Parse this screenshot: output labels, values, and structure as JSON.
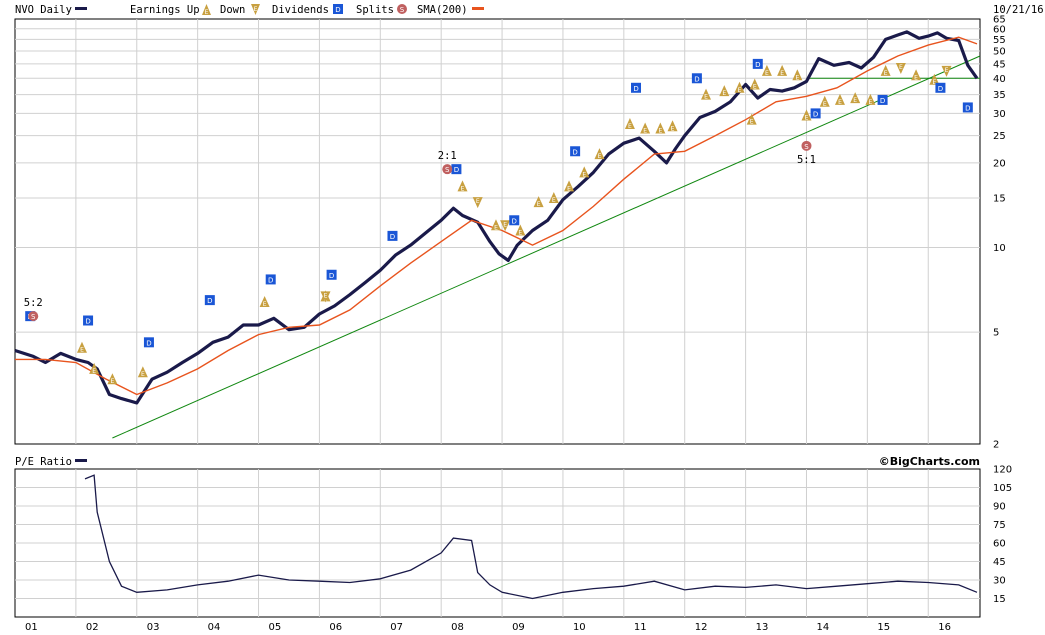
{
  "header": {
    "symbol_label": "NVO Daily",
    "legend": [
      {
        "label": "Earnings Up",
        "icon": "earnings-up-icon"
      },
      {
        "label": "Down",
        "icon": "earnings-down-icon"
      },
      {
        "label": "Dividends",
        "icon": "dividend-icon"
      },
      {
        "label": "Splits",
        "icon": "split-icon"
      },
      {
        "label": "SMA(200)",
        "icon": "sma-line-icon"
      }
    ],
    "date": "10/21/16"
  },
  "lower_panel": {
    "label": "P/E Ratio",
    "brand": "©BigCharts.com"
  },
  "colors": {
    "price": "#1a1a4a",
    "sma": "#e8541e",
    "trend": "#118811",
    "earnings": "#c8a040",
    "dividend": "#1a56d6",
    "split": "#c06060",
    "grid": "#d0d0d0"
  },
  "chart_data": [
    {
      "type": "line",
      "title": "NVO Daily",
      "scale": "log",
      "ylim": [
        2,
        65
      ],
      "yticks": [
        2,
        5,
        10,
        15,
        20,
        25,
        30,
        35,
        40,
        45,
        50,
        55,
        60,
        65
      ],
      "xlim": [
        2001.0,
        2016.85
      ],
      "x_ticks": [
        "01",
        "02",
        "03",
        "04",
        "05",
        "06",
        "07",
        "08",
        "09",
        "10",
        "11",
        "12",
        "13",
        "14",
        "15",
        "16"
      ],
      "series": [
        {
          "name": "NVO Daily",
          "x": [
            2001.0,
            2001.3,
            2001.5,
            2001.75,
            2002.0,
            2002.2,
            2002.35,
            2002.55,
            2002.75,
            2003.0,
            2003.25,
            2003.5,
            2003.75,
            2004.0,
            2004.25,
            2004.5,
            2004.75,
            2005.0,
            2005.25,
            2005.5,
            2005.75,
            2006.0,
            2006.25,
            2006.5,
            2006.75,
            2007.0,
            2007.25,
            2007.5,
            2007.75,
            2008.0,
            2008.2,
            2008.35,
            2008.6,
            2008.8,
            2008.95,
            2009.1,
            2009.25,
            2009.5,
            2009.75,
            2010.0,
            2010.25,
            2010.5,
            2010.75,
            2011.0,
            2011.25,
            2011.5,
            2011.7,
            2011.85,
            2012.0,
            2012.25,
            2012.5,
            2012.75,
            2013.0,
            2013.2,
            2013.4,
            2013.6,
            2013.8,
            2014.0,
            2014.2,
            2014.45,
            2014.7,
            2014.9,
            2015.1,
            2015.3,
            2015.5,
            2015.65,
            2015.85,
            2016.0,
            2016.15,
            2016.3,
            2016.5,
            2016.65,
            2016.8
          ],
          "y": [
            4.3,
            4.1,
            3.9,
            4.2,
            4.0,
            3.9,
            3.7,
            3.0,
            2.9,
            2.8,
            3.4,
            3.6,
            3.9,
            4.2,
            4.6,
            4.8,
            5.3,
            5.3,
            5.6,
            5.1,
            5.2,
            5.8,
            6.2,
            6.8,
            7.5,
            8.3,
            9.4,
            10.2,
            11.3,
            12.5,
            13.8,
            13.0,
            12.3,
            10.5,
            9.5,
            9.0,
            10.2,
            11.5,
            12.5,
            14.8,
            16.5,
            18.5,
            21.5,
            23.5,
            24.5,
            22.0,
            20.0,
            22.5,
            25.0,
            29.0,
            30.5,
            33.0,
            38.0,
            34.0,
            36.5,
            36.0,
            37.0,
            39.0,
            47.0,
            44.5,
            45.5,
            43.5,
            47.5,
            55.0,
            57.0,
            58.5,
            55.5,
            56.5,
            58.0,
            55.5,
            54.5,
            44.5,
            40.0
          ]
        },
        {
          "name": "SMA(200)",
          "x": [
            2001.0,
            2001.5,
            2002.0,
            2002.5,
            2003.0,
            2003.5,
            2004.0,
            2004.5,
            2005.0,
            2005.5,
            2006.0,
            2006.5,
            2007.0,
            2007.5,
            2008.0,
            2008.5,
            2009.0,
            2009.5,
            2010.0,
            2010.5,
            2011.0,
            2011.5,
            2012.0,
            2012.5,
            2013.0,
            2013.5,
            2014.0,
            2014.5,
            2015.0,
            2015.5,
            2016.0,
            2016.5,
            2016.8
          ],
          "y": [
            4.0,
            4.0,
            3.9,
            3.4,
            3.0,
            3.3,
            3.7,
            4.3,
            4.9,
            5.2,
            5.3,
            6.0,
            7.3,
            8.8,
            10.5,
            12.5,
            11.5,
            10.2,
            11.5,
            14.0,
            17.5,
            21.5,
            22.0,
            25.0,
            28.5,
            33.0,
            34.5,
            37.0,
            42.5,
            48.0,
            52.5,
            56.0,
            53.0
          ]
        },
        {
          "name": "trendline",
          "x": [
            2002.6,
            2016.85
          ],
          "y": [
            2.1,
            48.0
          ]
        },
        {
          "name": "support",
          "x": [
            2014.0,
            2016.85
          ],
          "y": [
            40.0,
            40.0
          ]
        }
      ],
      "earnings_up": [
        {
          "x": 2002.1,
          "y": 4.4
        },
        {
          "x": 2002.3,
          "y": 3.7
        },
        {
          "x": 2002.6,
          "y": 3.4
        },
        {
          "x": 2003.1,
          "y": 3.6
        },
        {
          "x": 2005.1,
          "y": 6.4
        },
        {
          "x": 2006.1,
          "y": 6.7
        },
        {
          "x": 2008.35,
          "y": 16.5
        },
        {
          "x": 2008.9,
          "y": 12.0
        },
        {
          "x": 2009.3,
          "y": 11.5
        },
        {
          "x": 2009.6,
          "y": 14.5
        },
        {
          "x": 2009.85,
          "y": 15.0
        },
        {
          "x": 2010.1,
          "y": 16.5
        },
        {
          "x": 2010.35,
          "y": 18.5
        },
        {
          "x": 2010.6,
          "y": 21.5
        },
        {
          "x": 2011.1,
          "y": 27.5
        },
        {
          "x": 2011.35,
          "y": 26.5
        },
        {
          "x": 2011.6,
          "y": 26.5
        },
        {
          "x": 2011.8,
          "y": 27.0
        },
        {
          "x": 2012.35,
          "y": 35.0
        },
        {
          "x": 2012.65,
          "y": 36.0
        },
        {
          "x": 2012.9,
          "y": 37.0
        },
        {
          "x": 2013.15,
          "y": 38.0
        },
        {
          "x": 2013.1,
          "y": 28.5
        },
        {
          "x": 2013.35,
          "y": 42.5
        },
        {
          "x": 2013.6,
          "y": 42.5
        },
        {
          "x": 2013.85,
          "y": 41.0
        },
        {
          "x": 2014.0,
          "y": 29.5
        },
        {
          "x": 2014.3,
          "y": 33.0
        },
        {
          "x": 2014.55,
          "y": 33.5
        },
        {
          "x": 2014.8,
          "y": 34.0
        },
        {
          "x": 2015.05,
          "y": 33.5
        },
        {
          "x": 2015.3,
          "y": 42.5
        },
        {
          "x": 2015.8,
          "y": 41.0
        },
        {
          "x": 2016.1,
          "y": 39.5
        }
      ],
      "earnings_down": [
        {
          "x": 2006.1,
          "y": 6.7
        },
        {
          "x": 2008.6,
          "y": 14.5
        },
        {
          "x": 2009.05,
          "y": 12.0
        },
        {
          "x": 2015.55,
          "y": 43.5
        },
        {
          "x": 2016.3,
          "y": 42.5
        }
      ],
      "dividends": [
        {
          "x": 2001.25,
          "y": 5.7
        },
        {
          "x": 2002.2,
          "y": 5.5
        },
        {
          "x": 2003.2,
          "y": 4.6
        },
        {
          "x": 2004.2,
          "y": 6.5
        },
        {
          "x": 2005.2,
          "y": 7.7
        },
        {
          "x": 2006.2,
          "y": 8.0
        },
        {
          "x": 2007.2,
          "y": 11.0
        },
        {
          "x": 2008.25,
          "y": 19.0
        },
        {
          "x": 2009.2,
          "y": 12.5
        },
        {
          "x": 2010.2,
          "y": 22.0
        },
        {
          "x": 2011.2,
          "y": 37.0
        },
        {
          "x": 2012.2,
          "y": 40.0
        },
        {
          "x": 2013.2,
          "y": 45.0
        },
        {
          "x": 2014.15,
          "y": 30.0
        },
        {
          "x": 2015.25,
          "y": 33.5
        },
        {
          "x": 2016.2,
          "y": 37.0
        },
        {
          "x": 2016.65,
          "y": 31.5
        }
      ],
      "splits": [
        {
          "x": 2001.3,
          "y": 5.7,
          "label": "5:2"
        },
        {
          "x": 2008.1,
          "y": 19.0,
          "label": "2:1"
        },
        {
          "x": 2014.0,
          "y": 23.0,
          "label": "5:1"
        }
      ]
    },
    {
      "type": "line",
      "title": "P/E Ratio",
      "ylim": [
        0,
        120
      ],
      "yticks": [
        15,
        30,
        45,
        60,
        75,
        90,
        105,
        120
      ],
      "xlim": [
        2001.0,
        2016.85
      ],
      "series": [
        {
          "name": "P/E Ratio",
          "x": [
            2002.15,
            2002.3,
            2002.35,
            2002.55,
            2002.75,
            2003.0,
            2003.5,
            2004.0,
            2004.5,
            2005.0,
            2005.5,
            2006.0,
            2006.5,
            2007.0,
            2007.5,
            2008.0,
            2008.2,
            2008.5,
            2008.6,
            2008.8,
            2009.0,
            2009.5,
            2010.0,
            2010.5,
            2011.0,
            2011.5,
            2012.0,
            2012.5,
            2013.0,
            2013.5,
            2014.0,
            2014.5,
            2015.0,
            2015.5,
            2016.0,
            2016.5,
            2016.8
          ],
          "y": [
            112,
            115,
            85,
            45,
            25,
            20,
            22,
            26,
            29,
            34,
            30,
            29,
            28,
            31,
            38,
            52,
            64,
            62,
            36,
            26,
            20,
            15,
            20,
            23,
            25,
            29,
            22,
            25,
            24,
            26,
            23,
            25,
            27,
            29,
            28,
            26,
            20
          ]
        }
      ]
    }
  ]
}
